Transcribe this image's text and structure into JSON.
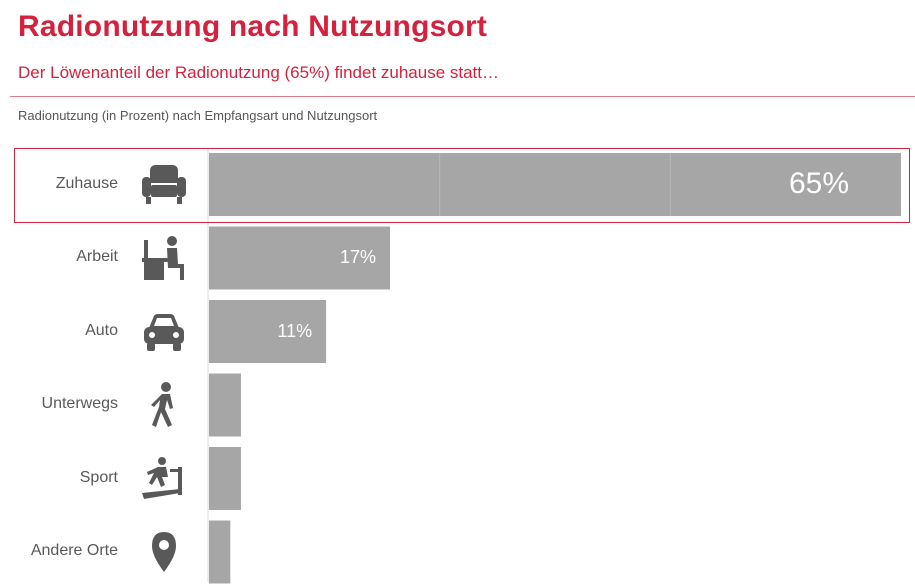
{
  "header": {
    "title": "Radionutzung nach Nutzungsort",
    "subtitle": "Der Löwenanteil der Radionutzung (65%) findet zuhause statt…",
    "caption": "Radionutzung (in Prozent) nach Empfangsart und Nutzungsort"
  },
  "icons": [
    "armchair-icon",
    "desk-worker-icon",
    "car-icon",
    "walking-person-icon",
    "treadmill-icon",
    "location-pin-icon"
  ],
  "colors": {
    "accent": "#d4213d",
    "bar": "#a6a6a6",
    "icon": "#595959"
  },
  "chart_data": {
    "type": "bar",
    "orientation": "horizontal",
    "categories": [
      "Zuhause",
      "Arbeit",
      "Auto",
      "Unterwegs",
      "Sport",
      "Andere Orte"
    ],
    "values": [
      65,
      17,
      11,
      3,
      3,
      2
    ],
    "data_labels": [
      "65%",
      "17%",
      "11%",
      "",
      "",
      ""
    ],
    "xlim": [
      0,
      65
    ],
    "grid": false,
    "legend": "none",
    "highlighted_category": "Zuhause"
  }
}
